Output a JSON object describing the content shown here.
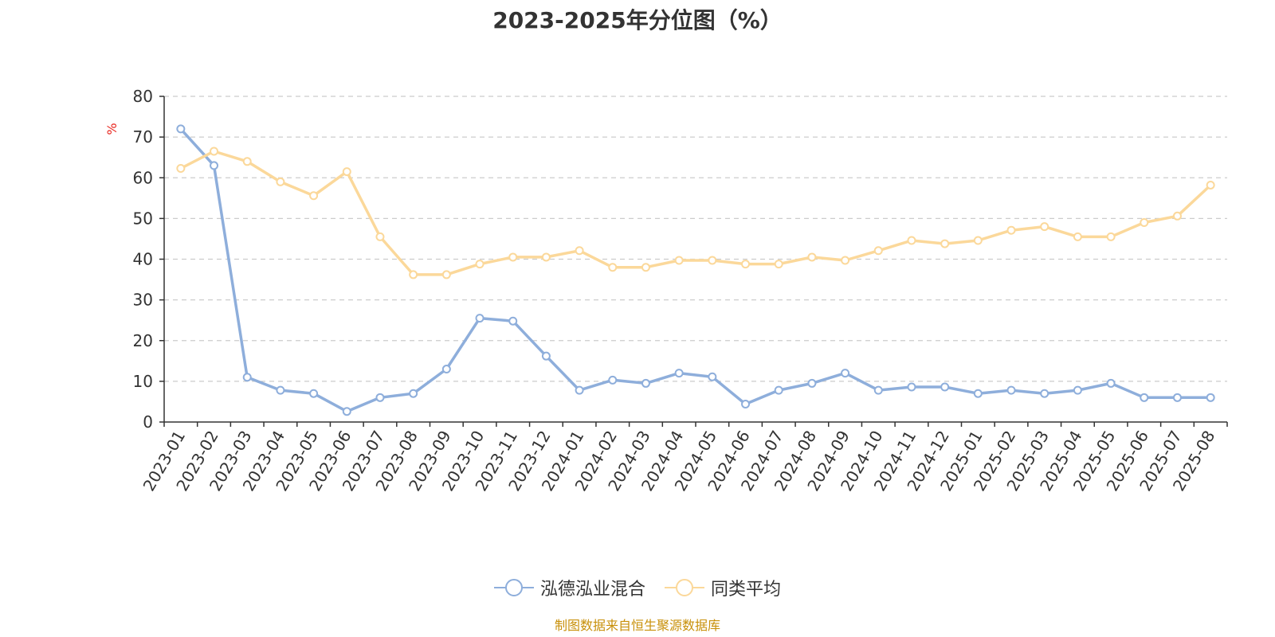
{
  "chart_data": {
    "type": "line",
    "title": "2023-2025年分位图（%）",
    "unit": "%",
    "ylim": [
      0,
      80
    ],
    "yticks": [
      "0",
      "10",
      "20",
      "30",
      "40",
      "50",
      "60",
      "70",
      "80"
    ],
    "grid": true,
    "legend_position": "bottom",
    "categories": [
      "2023-01",
      "2023-02",
      "2023-03",
      "2023-04",
      "2023-05",
      "2023-06",
      "2023-07",
      "2023-08",
      "2023-09",
      "2023-10",
      "2023-11",
      "2023-12",
      "2024-01",
      "2024-02",
      "2024-03",
      "2024-04",
      "2024-05",
      "2024-06",
      "2024-07",
      "2024-08",
      "2024-09",
      "2024-10",
      "2024-11",
      "2024-12",
      "2025-01",
      "2025-02",
      "2025-03",
      "2025-04",
      "2025-05",
      "2025-06",
      "2025-07",
      "2025-08"
    ],
    "series": [
      {
        "name": "泓德泓业混合",
        "color": "#8eaedb",
        "values": [
          72,
          63,
          11,
          7.8,
          7,
          2.6,
          6,
          7,
          13,
          25.5,
          24.8,
          16.2,
          7.8,
          10.3,
          9.5,
          12,
          11.1,
          4.4,
          7.8,
          9.5,
          12,
          7.8,
          8.6,
          8.6,
          7,
          7.8,
          7,
          7.8,
          9.5,
          6,
          6,
          6
        ]
      },
      {
        "name": "同类平均",
        "color": "#fbd89a",
        "values": [
          62.3,
          66.5,
          64,
          59,
          55.6,
          61.5,
          45.5,
          36.2,
          36.2,
          38.8,
          40.5,
          40.5,
          42.1,
          38,
          38,
          39.7,
          39.7,
          38.8,
          38.8,
          40.5,
          39.7,
          42.1,
          44.6,
          43.8,
          44.6,
          47.1,
          48,
          45.5,
          45.5,
          49,
          50.6,
          58.2
        ]
      }
    ]
  },
  "source_note": "制图数据来自恒生聚源数据库"
}
